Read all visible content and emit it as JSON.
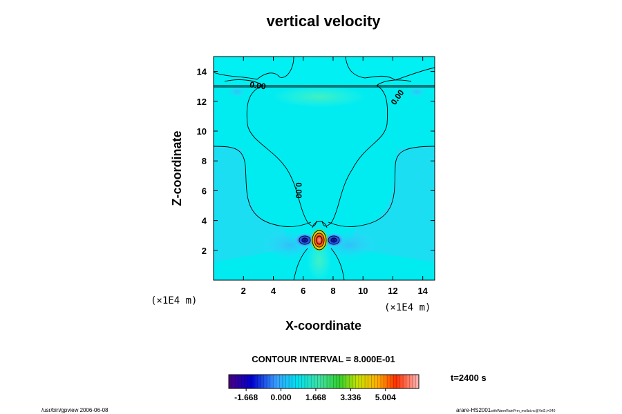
{
  "chart_data": {
    "type": "heatmap",
    "title": "vertical velocity",
    "xlabel": "X-coordinate",
    "ylabel": "Z-coordinate",
    "x_unit": "(×1E4 m)",
    "y_unit": "(×1E4 m)",
    "xlim": [
      0,
      14.8
    ],
    "ylim": [
      0,
      15
    ],
    "x_ticks": [
      "2",
      "4",
      "6",
      "8",
      "10",
      "12",
      "14"
    ],
    "y_ticks": [
      "2",
      "4",
      "6",
      "8",
      "10",
      "12",
      "14"
    ],
    "contour_labels": [
      "0.00",
      "0.00",
      "0.00"
    ],
    "contour_interval": "CONTOUR INTERVAL = 8.000E-01",
    "colorbar_ticks": [
      "-1.668",
      "0.000",
      "1.668",
      "3.336",
      "5.004"
    ],
    "colorbar_range": [
      -2.5,
      6.6
    ],
    "time_label": "t=2400 s",
    "grid": false
  },
  "footer": {
    "left": "/usr/bin/gpview 2006-06-08",
    "right_main": "arare-HS2001",
    "right_small": "withWarmRainPrm_mollat.nc@Vel2,t=240"
  }
}
